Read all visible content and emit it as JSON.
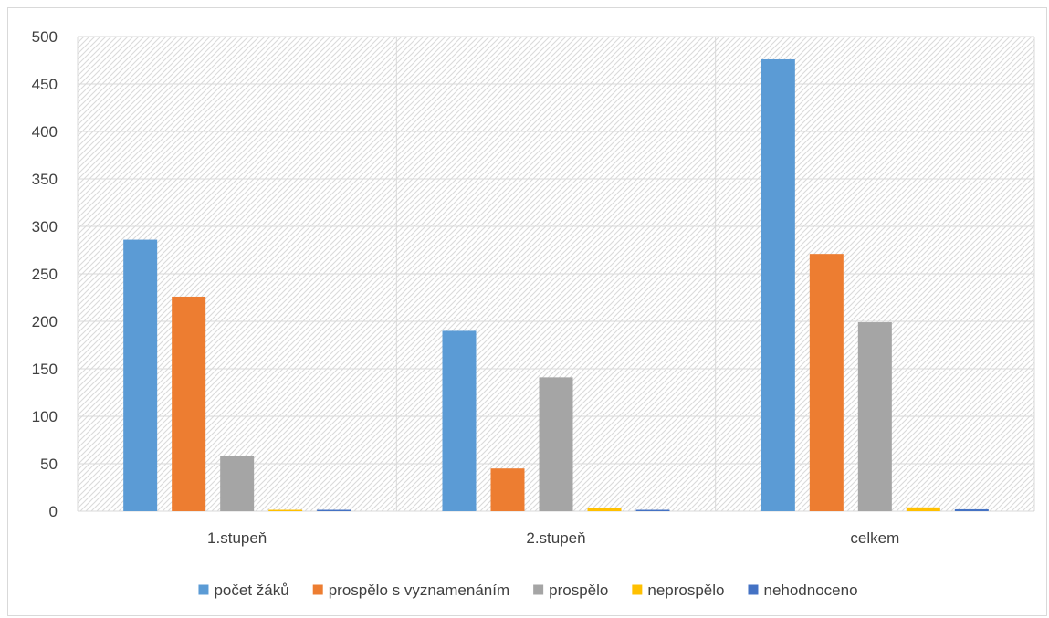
{
  "chart_data": {
    "type": "bar",
    "categories": [
      "1.stupeň",
      "2.stupeň",
      "celkem"
    ],
    "series": [
      {
        "name": "počet žáků",
        "values": [
          286,
          190,
          476
        ],
        "color": "#5b9bd5"
      },
      {
        "name": "prospělo s vyznamenáním",
        "values": [
          226,
          45,
          271
        ],
        "color": "#ed7d31"
      },
      {
        "name": "prospělo",
        "values": [
          58,
          141,
          199
        ],
        "color": "#a5a5a5"
      },
      {
        "name": "neprospělo",
        "values": [
          1,
          3,
          4
        ],
        "color": "#ffc000"
      },
      {
        "name": "nehodnoceno",
        "values": [
          1,
          1,
          2
        ],
        "color": "#4472c4"
      }
    ],
    "ylim": [
      0,
      500
    ],
    "yticks": [
      0,
      50,
      100,
      150,
      200,
      250,
      300,
      350,
      400,
      450,
      500
    ],
    "grid": true,
    "legend": "bottom",
    "title": "",
    "xlabel": "",
    "ylabel": ""
  }
}
